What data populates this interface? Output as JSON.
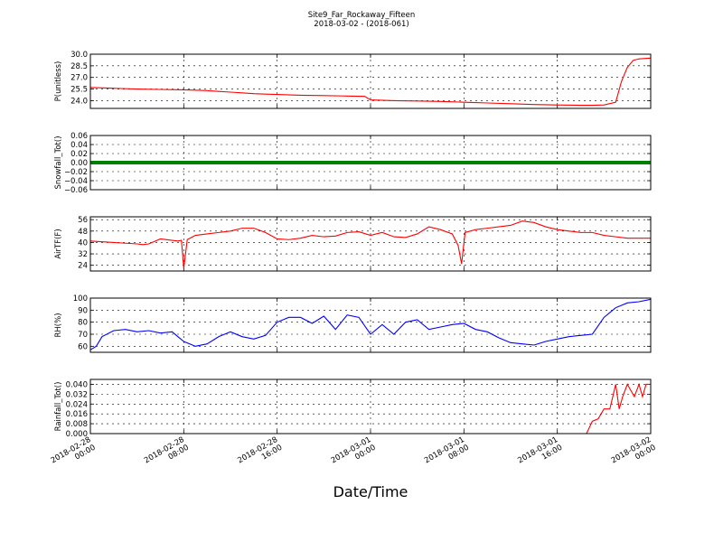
{
  "chart_data": {
    "type": "line",
    "title": "Site9_Far_Rockaway_Fifteen",
    "subtitle": "2018-03-02 - (2018-061)",
    "xlabel": "Date/Time",
    "x_range": [
      "2018-02-28 00:00",
      "2018-03-02 00:00"
    ],
    "x_ticks": [
      {
        "line1": "2018-02-28",
        "line2": "00:00",
        "hours": 0
      },
      {
        "line1": "2018-02-28",
        "line2": "08:00",
        "hours": 8
      },
      {
        "line1": "2018-02-28",
        "line2": "16:00",
        "hours": 16
      },
      {
        "line1": "2018-03-01",
        "line2": "00:00",
        "hours": 24
      },
      {
        "line1": "2018-03-01",
        "line2": "08:00",
        "hours": 32
      },
      {
        "line1": "2018-03-01",
        "line2": "16:00",
        "hours": 40
      },
      {
        "line1": "2018-03-02",
        "line2": "00:00",
        "hours": 48
      }
    ],
    "grid": true,
    "panels": [
      {
        "ylabel": "P(unitless)",
        "ylim": [
          23.0,
          30.0
        ],
        "yticks": [
          24.0,
          25.5,
          27.0,
          28.5,
          30.0
        ],
        "tick_labels": [
          "24.0",
          "25.5",
          "27.0",
          "28.5",
          "30.0"
        ],
        "color": "#ff0000",
        "series": {
          "x": [
            0,
            2,
            4,
            6,
            8,
            10,
            11,
            12,
            13,
            14,
            15,
            16,
            18,
            20,
            22,
            23.5,
            24,
            26,
            28,
            30,
            32,
            33,
            34,
            36,
            38,
            40,
            42,
            43,
            44,
            45,
            45.5,
            46,
            46.5,
            47,
            48
          ],
          "y": [
            25.7,
            25.6,
            25.5,
            25.45,
            25.4,
            25.3,
            25.2,
            25.1,
            25.0,
            24.9,
            24.85,
            24.8,
            24.7,
            24.65,
            24.6,
            24.55,
            24.1,
            24.0,
            23.95,
            23.9,
            23.8,
            23.75,
            23.7,
            23.6,
            23.5,
            23.45,
            23.4,
            23.4,
            23.45,
            23.8,
            26.5,
            28.3,
            29.2,
            29.4,
            29.5
          ]
        }
      },
      {
        "ylabel": "Snowfall_Tot()",
        "ylim": [
          -0.06,
          0.06
        ],
        "yticks": [
          -0.06,
          -0.04,
          -0.02,
          0.0,
          0.02,
          0.04,
          0.06
        ],
        "tick_labels": [
          "−0.06",
          "−0.04",
          "−0.02",
          "0.00",
          "0.02",
          "0.04",
          "0.06"
        ],
        "color": "#008000",
        "series": {
          "x": [
            0,
            48
          ],
          "y": [
            0.0,
            0.0
          ]
        }
      },
      {
        "ylabel": "AirTF(F)",
        "ylim": [
          20,
          58
        ],
        "yticks": [
          24,
          32,
          40,
          48,
          56
        ],
        "tick_labels": [
          "24",
          "32",
          "40",
          "48",
          "56"
        ],
        "color": "#ff0000",
        "series": {
          "x": [
            0,
            2,
            4,
            4.5,
            5,
            6,
            7,
            7.5,
            7.8,
            8.0,
            8.3,
            9,
            10,
            11,
            12,
            13,
            14,
            15,
            16,
            17,
            18,
            19,
            20,
            21,
            22,
            23,
            24,
            25,
            26,
            27,
            28,
            29,
            30,
            31,
            31.5,
            31.8,
            32.1,
            33,
            34,
            35,
            36,
            37,
            38,
            39,
            40,
            41,
            42,
            43,
            44,
            45,
            46,
            48
          ],
          "y": [
            41,
            40,
            39,
            38.5,
            39,
            42.5,
            41.5,
            41,
            41.5,
            22,
            42,
            45,
            46,
            47,
            48,
            50,
            50,
            47,
            42.5,
            42,
            43,
            45,
            44,
            44.5,
            47,
            47.5,
            45,
            47,
            44,
            43.5,
            46,
            51,
            49,
            46,
            38,
            25,
            47,
            49,
            50,
            51,
            52,
            55,
            54,
            51,
            49,
            48,
            47,
            47,
            45,
            44,
            43,
            43
          ]
        }
      },
      {
        "ylabel": "RH(%)",
        "ylim": [
          55,
          100
        ],
        "yticks": [
          60,
          70,
          80,
          90,
          100
        ],
        "tick_labels": [
          "60",
          "70",
          "80",
          "90",
          "100"
        ],
        "color": "#0000ff",
        "series": {
          "x": [
            0,
            0.5,
            1,
            2,
            3,
            4,
            5,
            6,
            7,
            7.5,
            8,
            9,
            10,
            11,
            12,
            13,
            14,
            15,
            16,
            17,
            18,
            19,
            20,
            21,
            22,
            23,
            24,
            25,
            26,
            27,
            28,
            29,
            30,
            31,
            32,
            33,
            34,
            35,
            36,
            37,
            38,
            39,
            40,
            41,
            42,
            43,
            44,
            45,
            46,
            47,
            48
          ],
          "y": [
            57,
            60,
            68,
            73,
            74,
            72,
            73,
            71,
            72,
            68,
            64,
            60,
            62,
            68,
            72,
            68,
            66,
            69,
            80,
            84,
            84,
            79,
            85,
            74,
            86,
            84,
            70,
            78,
            70,
            80,
            82,
            74,
            76,
            78,
            79,
            74,
            72,
            67,
            63,
            62,
            61,
            64,
            66,
            68,
            69,
            70,
            84,
            92,
            96,
            97,
            99
          ]
        }
      },
      {
        "ylabel": "Rainfall_Tot()",
        "ylim": [
          0.0,
          0.044
        ],
        "yticks": [
          0.0,
          0.008,
          0.016,
          0.024,
          0.032,
          0.04
        ],
        "tick_labels": [
          "0.000",
          "0.008",
          "0.016",
          "0.024",
          "0.032",
          "0.040"
        ],
        "color": "#ff0000",
        "series": {
          "x": [
            0,
            42.5,
            43,
            43.5,
            44,
            44.5,
            45,
            45.3,
            45.6,
            46,
            46.3,
            46.6,
            47,
            47.3,
            47.6,
            48
          ],
          "y": [
            0,
            0,
            0.01,
            0.012,
            0.02,
            0.02,
            0.04,
            0.02,
            0.03,
            0.04,
            0.035,
            0.03,
            0.04,
            0.03,
            0.04,
            0.04
          ]
        }
      }
    ]
  }
}
